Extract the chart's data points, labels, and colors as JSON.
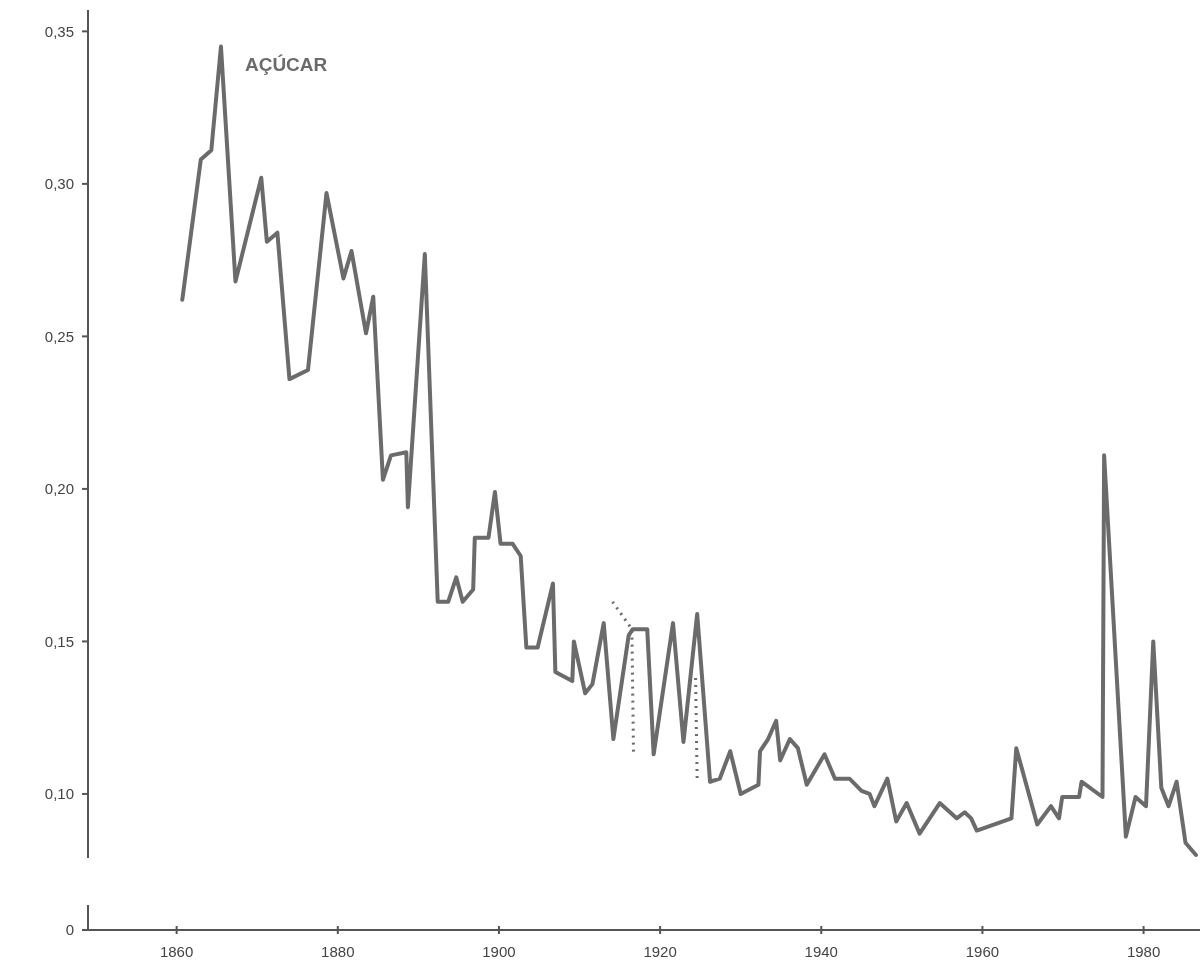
{
  "chart_data": {
    "type": "line",
    "xlim": [
      1849,
      1987
    ],
    "xticks": [
      1860,
      1880,
      1900,
      1920,
      1940,
      1960,
      1980
    ],
    "ylim": [
      0.079,
      0.357
    ],
    "yticks": [
      {
        "value": 0.1,
        "label": "0,10"
      },
      {
        "value": 0.15,
        "label": "0,15"
      },
      {
        "value": 0.2,
        "label": "0,20"
      },
      {
        "value": 0.25,
        "label": "0,25"
      },
      {
        "value": 0.3,
        "label": "0,30"
      },
      {
        "value": 0.35,
        "label": "0,35"
      }
    ],
    "grid": false,
    "marker": "none",
    "annotations": [
      "0"
    ],
    "series": [
      {
        "name": "AÇÚCAR",
        "color": "#6b6b6b",
        "line_style": "solid",
        "x": [
          1860.7,
          1863,
          1864.3,
          1865.5,
          1867.3,
          1870.5,
          1871.2,
          1872.5,
          1874,
          1876.3,
          1878.6,
          1880.7,
          1881.7,
          1883.5,
          1884.4,
          1885.6,
          1886.6,
          1888.5,
          1888.7,
          1890.8,
          1892.4,
          1893.7,
          1894.7,
          1895.5,
          1896.8,
          1897,
          1898.7,
          1899.5,
          1900.2,
          1901.7,
          1902.7,
          1903.4,
          1904.8,
          1906.7,
          1907,
          1909.1,
          1909.3,
          1910.7,
          1911.6,
          1913,
          1914.2,
          1916.1,
          1916.6,
          1918.4,
          1919.2,
          1921.6,
          1922.9,
          1924.6,
          1926.2,
          1927.4,
          1928.7,
          1930,
          1932.2,
          1932.4,
          1933.4,
          1934.4,
          1934.9,
          1936.1,
          1937.1,
          1938.2,
          1940.4,
          1941.7,
          1943.5,
          1945,
          1946,
          1946.6,
          1948.2,
          1949.3,
          1950.6,
          1952.2,
          1954.7,
          1956.8,
          1957.8,
          1958.6,
          1959.3,
          1963.6,
          1964.2,
          1966.8,
          1968.5,
          1969.5,
          1969.9,
          1972,
          1972.3,
          1974.9,
          1975.1,
          1977.8,
          1979,
          1980.3,
          1981.2,
          1982.2,
          1983.1,
          1984.1,
          1985.2,
          1986.5
        ],
        "values": [
          0.262,
          0.308,
          0.311,
          0.345,
          0.268,
          0.302,
          0.281,
          0.284,
          0.236,
          0.239,
          0.297,
          0.269,
          0.278,
          0.251,
          0.263,
          0.203,
          0.211,
          0.212,
          0.194,
          0.277,
          0.163,
          0.163,
          0.171,
          0.163,
          0.167,
          0.184,
          0.184,
          0.199,
          0.182,
          0.182,
          0.178,
          0.148,
          0.148,
          0.169,
          0.14,
          0.137,
          0.15,
          0.133,
          0.136,
          0.156,
          0.118,
          0.152,
          0.154,
          0.154,
          0.113,
          0.156,
          0.117,
          0.159,
          0.104,
          0.105,
          0.114,
          0.1,
          0.103,
          0.114,
          0.118,
          0.124,
          0.111,
          0.118,
          0.115,
          0.103,
          0.113,
          0.105,
          0.105,
          0.101,
          0.1,
          0.096,
          0.105,
          0.091,
          0.097,
          0.087,
          0.097,
          0.092,
          0.094,
          0.092,
          0.088,
          0.092,
          0.115,
          0.09,
          0.096,
          0.092,
          0.099,
          0.099,
          0.104,
          0.099,
          0.211,
          0.086,
          0.099,
          0.096,
          0.15,
          0.102,
          0.096,
          0.104,
          0.084,
          0.08
        ]
      },
      {
        "color": "#6b6b6b",
        "line_style": "dotted",
        "x": [
          1914.1,
          1916.5,
          1916.7
        ],
        "values": [
          0.163,
          0.154,
          0.113
        ]
      },
      {
        "color": "#6b6b6b",
        "line_style": "dotted",
        "x": [
          1924.4,
          1924.6
        ],
        "values": [
          0.138,
          0.104
        ]
      }
    ]
  }
}
